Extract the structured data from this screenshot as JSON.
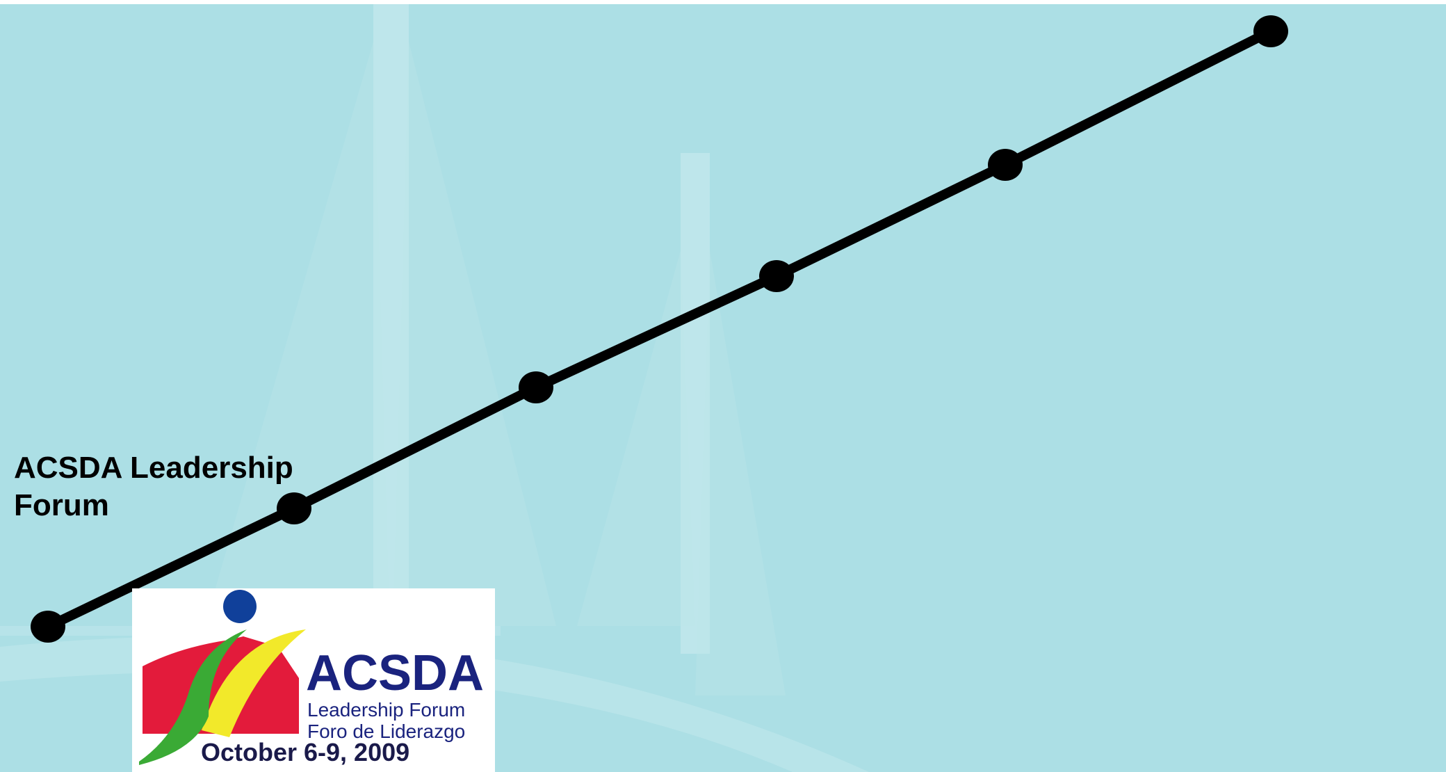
{
  "slide": {
    "label": "ACSDA Leadership Forum",
    "logo": {
      "name": "ACSDA",
      "line1": "Leadership Forum",
      "line2": "Foro de Liderazgo",
      "date": "October 6-9, 2009"
    }
  }
}
